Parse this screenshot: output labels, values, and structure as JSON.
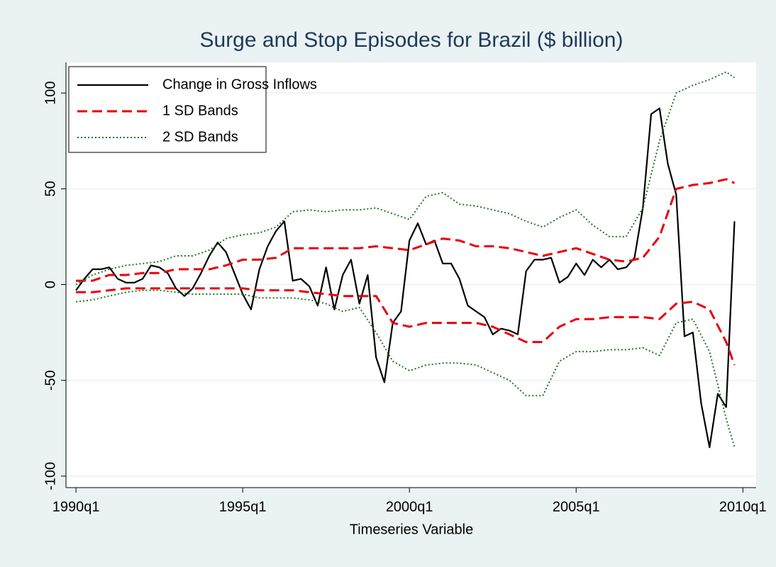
{
  "chart_data": {
    "type": "line",
    "title": "Surge and Stop Episodes for Brazil ($ billion)",
    "xlabel": "Timeseries Variable",
    "xlim": [
      1989.7,
      2010.1
    ],
    "ylim": [
      -106,
      116
    ],
    "xticks": [
      {
        "value": 1990,
        "label": "1990q1"
      },
      {
        "value": 1995,
        "label": "1995q1"
      },
      {
        "value": 2000,
        "label": "2000q1"
      },
      {
        "value": 2005,
        "label": "2005q1"
      },
      {
        "value": 2010,
        "label": "2010q1"
      }
    ],
    "yticks": [
      -100,
      -50,
      0,
      50,
      100
    ],
    "grid": true,
    "legend": "top-left",
    "x": [
      1990,
      1990.25,
      1990.5,
      1990.75,
      1991,
      1991.25,
      1991.5,
      1991.75,
      1992,
      1992.25,
      1992.5,
      1992.75,
      1993,
      1993.25,
      1993.5,
      1993.75,
      1994,
      1994.25,
      1994.5,
      1994.75,
      1995,
      1995.25,
      1995.5,
      1995.75,
      1996,
      1996.25,
      1996.5,
      1996.75,
      1997,
      1997.25,
      1997.5,
      1997.75,
      1998,
      1998.25,
      1998.5,
      1998.75,
      1999,
      1999.25,
      1999.5,
      1999.75,
      2000,
      2000.25,
      2000.5,
      2000.75,
      2001,
      2001.25,
      2001.5,
      2001.75,
      2002,
      2002.25,
      2002.5,
      2002.75,
      2003,
      2003.25,
      2003.5,
      2003.75,
      2004,
      2004.25,
      2004.5,
      2004.75,
      2005,
      2005.25,
      2005.5,
      2005.75,
      2006,
      2006.25,
      2006.5,
      2006.75,
      2007,
      2007.25,
      2007.5,
      2007.75,
      2008,
      2008.25,
      2008.5,
      2008.75,
      2009,
      2009.25,
      2009.5,
      2009.75
    ],
    "series": [
      {
        "name": "Change in Gross Inflows",
        "color": "#000000",
        "style": "solid",
        "values": [
          -3,
          3,
          8,
          8,
          9,
          3,
          1,
          1,
          3,
          10,
          9,
          6,
          -2,
          -6,
          -2,
          6,
          15,
          22,
          17,
          6,
          -5,
          -13,
          8,
          20,
          28,
          33,
          2,
          3,
          -1,
          -11,
          9,
          -13,
          5,
          13,
          -10,
          5,
          -38,
          -51,
          -20,
          -14,
          23,
          32,
          21,
          23,
          11,
          11,
          3,
          -11,
          -14,
          -17,
          -26,
          -23,
          -24,
          -26,
          7,
          13,
          13,
          14,
          1,
          4,
          11,
          5,
          13,
          9,
          13,
          8,
          9,
          14,
          40,
          89,
          92,
          63,
          47,
          -27,
          -25,
          -62,
          -85,
          -57,
          -64,
          33
        ]
      },
      {
        "name": "1 SD Bands",
        "color": "#e8000b",
        "style": "dash",
        "x": [
          1990,
          1990.5,
          1991,
          1991.5,
          1992,
          1992.5,
          1993,
          1993.5,
          1994,
          1994.5,
          1995,
          1995.5,
          1996,
          1996.5,
          1997,
          1997.5,
          1998,
          1998.5,
          1999,
          1999.5,
          2000,
          2000.5,
          2001,
          2001.5,
          2002,
          2002.5,
          2003,
          2003.5,
          2004,
          2004.5,
          2005,
          2005.5,
          2006,
          2006.5,
          2007,
          2007.5,
          2008,
          2008.5,
          2009,
          2009.5,
          2009.75
        ],
        "upper": [
          2,
          2,
          5,
          5,
          6,
          6,
          8,
          8,
          8,
          10,
          13,
          13,
          14,
          19,
          19,
          19,
          19,
          19,
          20,
          19,
          18,
          21,
          24,
          23,
          20,
          20,
          19,
          17,
          15,
          17,
          19,
          16,
          13,
          12,
          14,
          25,
          50,
          52,
          53,
          55,
          53
        ],
        "lower": [
          -4,
          -4,
          -3,
          -2,
          -2,
          -2,
          -2,
          -2,
          -2,
          -2,
          -2,
          -3,
          -3,
          -3,
          -4,
          -5,
          -6,
          -6,
          -6,
          -20,
          -22,
          -20,
          -20,
          -20,
          -20,
          -22,
          -26,
          -30,
          -30,
          -22,
          -18,
          -18,
          -17,
          -17,
          -17,
          -18,
          -10,
          -9,
          -13,
          -30,
          -42
        ]
      },
      {
        "name": "2 SD Bands",
        "color": "#1a7a1a",
        "style": "dot",
        "x": [
          1990,
          1990.5,
          1991,
          1991.5,
          1992,
          1992.5,
          1993,
          1993.5,
          1994,
          1994.5,
          1995,
          1995.5,
          1996,
          1996.5,
          1997,
          1997.5,
          1998,
          1998.5,
          1999,
          1999.5,
          2000,
          2000.5,
          2001,
          2001.5,
          2002,
          2002.5,
          2003,
          2003.5,
          2004,
          2004.5,
          2005,
          2005.5,
          2006,
          2006.5,
          2007,
          2007.5,
          2008,
          2008.5,
          2009,
          2009.5,
          2009.75
        ],
        "upper": [
          0,
          5,
          8,
          10,
          11,
          12,
          15,
          15,
          18,
          24,
          26,
          27,
          30,
          38,
          39,
          38,
          39,
          39,
          40,
          37,
          34,
          46,
          48,
          42,
          41,
          39,
          37,
          33,
          30,
          35,
          39,
          31,
          25,
          25,
          40,
          75,
          100,
          104,
          107,
          111,
          108
        ],
        "lower": [
          -9,
          -8,
          -6,
          -4,
          -3,
          -3,
          -4,
          -5,
          -5,
          -5,
          -5,
          -7,
          -7,
          -7,
          -8,
          -10,
          -14,
          -12,
          -25,
          -40,
          -45,
          -42,
          -41,
          -41,
          -42,
          -46,
          -50,
          -58,
          -58,
          -40,
          -35,
          -35,
          -34,
          -34,
          -33,
          -37,
          -20,
          -18,
          -35,
          -70,
          -85
        ]
      }
    ]
  }
}
